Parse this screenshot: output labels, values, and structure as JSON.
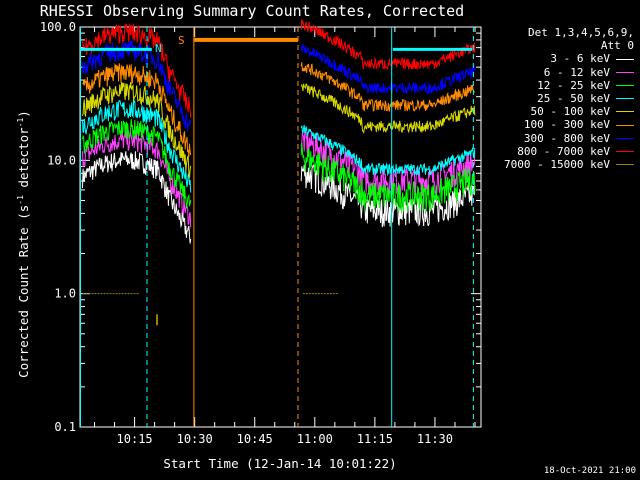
{
  "chart_data": {
    "type": "line",
    "title": "RHESSI Observing Summary Count Rates, Corrected",
    "xlabel": "Start Time (12-Jan-14 10:01:22)",
    "ylabel_main": "Corrected Count Rate (s",
    "ylabel_sup": "-1",
    "ylabel_mid": " detector",
    "ylabel_end": ")",
    "x_tick_labels": [
      "10:15",
      "10:30",
      "10:45",
      "11:00",
      "11:15",
      "11:30"
    ],
    "x_tick_minutes": [
      15,
      30,
      45,
      60,
      75,
      90
    ],
    "xlim_minutes_after_10": [
      1.37,
      101.5
    ],
    "y_scale": "log",
    "ylim": [
      0.1,
      100
    ],
    "y_tick_labels": [
      "0.1",
      "1.0",
      "10.0",
      "100.0"
    ],
    "y_tick_values": [
      0.1,
      1,
      10,
      100
    ],
    "legend_header": [
      "Det 1,3,4,5,6,9,",
      "Att 0"
    ],
    "series": [
      {
        "name": "3 - 6 keV",
        "color": "#ffffff"
      },
      {
        "name": "6 - 12 keV",
        "color": "#ff40ff"
      },
      {
        "name": "12 - 25 keV",
        "color": "#00ff00"
      },
      {
        "name": "25 - 50 keV",
        "color": "#00ffff"
      },
      {
        "name": "50 - 100 keV",
        "color": "#d8d800"
      },
      {
        "name": "100 - 300 keV",
        "color": "#ff8c00"
      },
      {
        "name": "300 - 800 keV",
        "color": "#0000ff"
      },
      {
        "name": "800 - 7000 keV",
        "color": "#ff0000"
      },
      {
        "name": "7000 - 15000 keV",
        "color": "#a08000"
      }
    ],
    "annotations": {
      "N": "N",
      "S": "S"
    },
    "cyan_solid_minutes": [
      1.5,
      79.2
    ],
    "cyan_dashed_minutes": [
      18.1,
      99.6
    ],
    "orange_solid_minutes": [
      29.8
    ],
    "orange_dashed_minutes": [
      55.8
    ],
    "saa_bar_minutes": [
      29.8,
      55.8
    ],
    "saa_bar_value": 80,
    "night_bar_minutes": [
      [
        1.5,
        19.3
      ],
      [
        79.5,
        99.3
      ]
    ],
    "night_bar_value": 68
  },
  "footer_stamp": "18-Oct-2021 21:00"
}
